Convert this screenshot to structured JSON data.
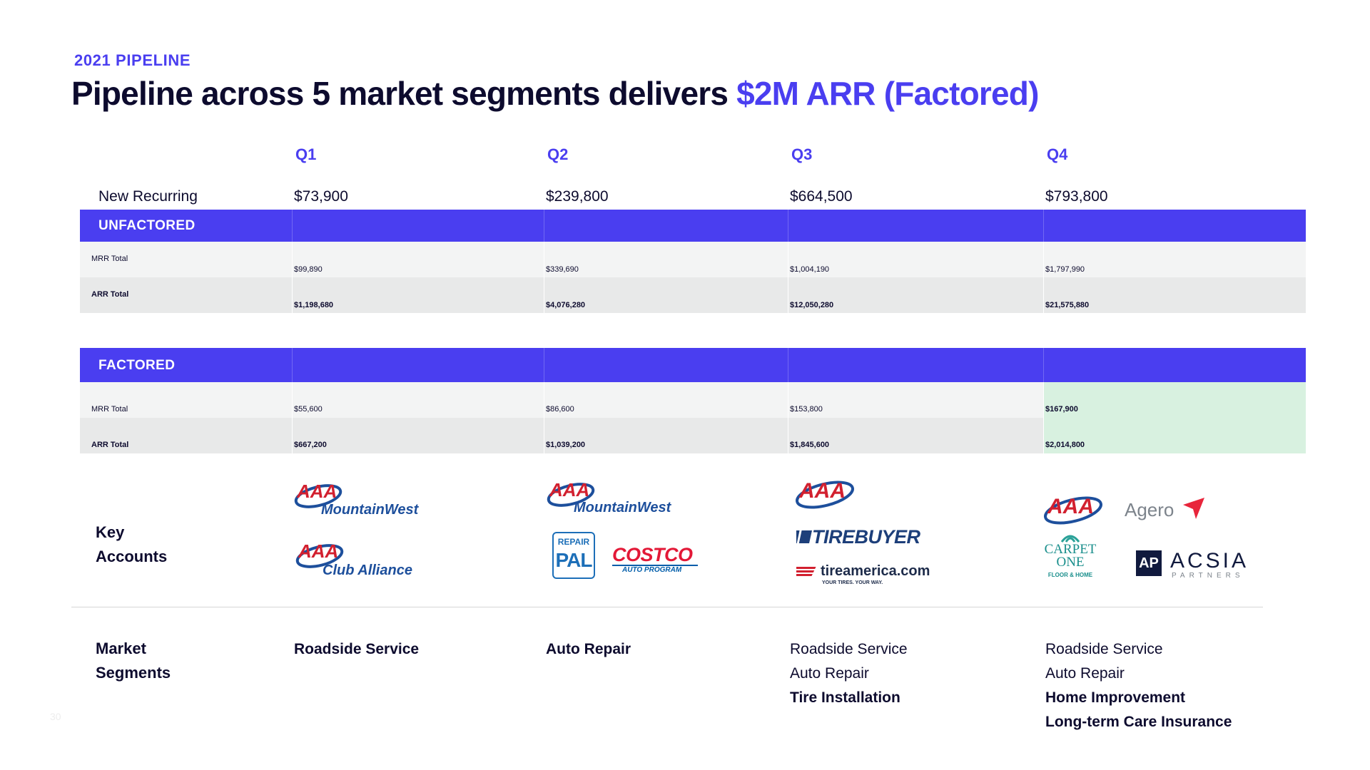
{
  "header": {
    "eyebrow": "2021 PIPELINE",
    "title_main": "Pipeline across 5 market segments delivers ",
    "title_accent": "$2M ARR (Factored)"
  },
  "quarters": [
    "Q1",
    "Q2",
    "Q3",
    "Q4"
  ],
  "new_recurring": {
    "label": "New Recurring",
    "values": [
      "$73,900",
      "$239,800",
      "$664,500",
      "$793,800"
    ]
  },
  "unfactored": {
    "label": "UNFACTORED",
    "mrr_label": "MRR Total",
    "mrr": [
      "$99,890",
      "$339,690",
      "$1,004,190",
      "$1,797,990"
    ],
    "arr_label": "ARR Total",
    "arr": [
      "$1,198,680",
      "$4,076,280",
      "$12,050,280",
      "$21,575,880"
    ]
  },
  "factored": {
    "label": "FACTORED",
    "mrr_label": "MRR Total",
    "mrr": [
      "$55,600",
      "$86,600",
      "$153,800",
      "$167,900"
    ],
    "arr_label": "ARR Total",
    "arr": [
      "$667,200",
      "$1,039,200",
      "$1,845,600",
      "$2,014,800"
    ]
  },
  "key_accounts": {
    "label_line1": "Key",
    "label_line2": "Accounts",
    "logos": {
      "aaa": "AAA",
      "mountain_west": "MountainWest",
      "club_alliance": "Club Alliance",
      "repair_pal_top": "REPAIR",
      "repair_pal_bottom": "PAL",
      "costco": "COSTCO",
      "costco_sub": "AUTO PROGRAM",
      "tirebuyer": "TIREBUYER",
      "tireamerica": "tireamerica.com",
      "tireamerica_tag": "YOUR TIRES. YOUR WAY.",
      "agero": "Agero",
      "carpet_one_1": "CARPET",
      "carpet_one_2": "ONE",
      "carpet_one_3": "FLOOR & HOME",
      "acsia": "ACSIA",
      "acsia_sub": "PARTNERS",
      "acsia_mark": "AP"
    }
  },
  "market_segments": {
    "label_line1": "Market",
    "label_line2": "Segments",
    "q1": [
      "Roadside Service"
    ],
    "q2": [
      "Auto Repair"
    ],
    "q3": [
      "Roadside Service",
      "Auto Repair",
      "Tire Installation"
    ],
    "q4": [
      "Roadside Service",
      "Auto Repair",
      "Home Improvement",
      "Long-term Care Insurance"
    ]
  },
  "page_number": "30",
  "colors": {
    "accent": "#4a3ef0",
    "ink": "#0d0b2e",
    "highlight": "#d8f1e0",
    "aaa_red": "#d2202f",
    "aaa_blue": "#1d4f9c"
  }
}
